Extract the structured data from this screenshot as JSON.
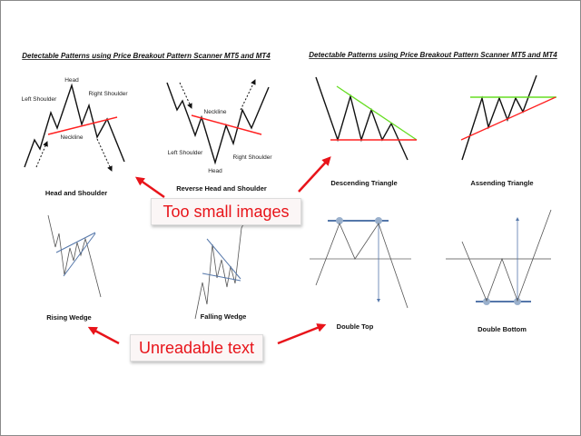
{
  "titles": {
    "left": "Detectable Patterns using Price Breakout Pattern Scanner MT5 and MT4",
    "right": "Detectable Patterns using Price Breakout Pattern Scanner MT5 and MT4"
  },
  "patterns": [
    {
      "name": "Head and Shoulder",
      "annotations": {
        "head": "Head",
        "left_shoulder": "Left Shoulder",
        "right_shoulder": "Right Shoulder",
        "neckline": "Neckline"
      }
    },
    {
      "name": "Reverse Head and Shoulder",
      "annotations": {
        "head": "Head",
        "left_shoulder": "Left Shoulder",
        "right_shoulder": "Right Shoulder",
        "neckline": "Neckline"
      }
    },
    {
      "name": "Descending Triangle"
    },
    {
      "name": "Assending Triangle"
    },
    {
      "name": "Rising Wedge"
    },
    {
      "name": "Falling Wedge"
    },
    {
      "name": "Double Top"
    },
    {
      "name": "Double Bottom"
    }
  ],
  "callouts": {
    "small_images": "Too small images",
    "unreadable_text": "Unreadable text"
  },
  "colors": {
    "callout_text": "#e8141a",
    "neckline": "#ff2020",
    "resistance": "#66dd22",
    "wedge": "#5577aa"
  }
}
